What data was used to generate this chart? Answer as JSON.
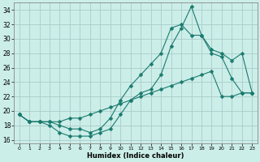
{
  "xlabel": "Humidex (Indice chaleur)",
  "bg_color": "#cceee8",
  "grid_color": "#aacccc",
  "line_color": "#1a7a6e",
  "xlim": [
    -0.5,
    23.5
  ],
  "ylim": [
    15.5,
    35.0
  ],
  "xticks": [
    0,
    1,
    2,
    3,
    4,
    5,
    6,
    7,
    8,
    9,
    10,
    11,
    12,
    13,
    14,
    15,
    16,
    17,
    18,
    19,
    20,
    21,
    22,
    23
  ],
  "yticks": [
    16,
    18,
    20,
    22,
    24,
    26,
    28,
    30,
    32,
    34
  ],
  "line1_x": [
    0,
    1,
    2,
    3,
    4,
    5,
    6,
    7,
    8,
    9,
    10,
    11,
    12,
    13,
    14,
    15,
    16,
    17,
    18,
    19,
    20,
    21,
    22,
    23
  ],
  "line1_y": [
    19.5,
    18.5,
    18.5,
    18.0,
    17.0,
    16.5,
    16.5,
    16.5,
    17.0,
    17.5,
    19.5,
    21.5,
    22.5,
    23.0,
    25.0,
    29.0,
    31.5,
    34.5,
    30.5,
    28.0,
    27.5,
    24.5,
    22.5,
    22.5
  ],
  "line2_x": [
    0,
    1,
    2,
    3,
    4,
    5,
    6,
    7,
    8,
    9,
    10,
    11,
    12,
    13,
    14,
    15,
    16,
    17,
    18,
    19,
    20,
    21,
    22,
    23
  ],
  "line2_y": [
    19.5,
    18.5,
    18.5,
    18.5,
    18.0,
    17.5,
    17.5,
    17.0,
    17.5,
    19.0,
    21.5,
    23.5,
    25.0,
    26.5,
    28.0,
    31.5,
    32.0,
    30.5,
    30.5,
    28.5,
    28.0,
    27.0,
    28.0,
    22.5
  ],
  "line3_x": [
    0,
    1,
    2,
    3,
    4,
    5,
    6,
    7,
    8,
    9,
    10,
    11,
    12,
    13,
    14,
    15,
    16,
    17,
    18,
    19,
    20,
    21,
    22,
    23
  ],
  "line3_y": [
    19.5,
    18.5,
    18.5,
    18.5,
    18.5,
    19.0,
    19.0,
    19.5,
    20.0,
    20.5,
    21.0,
    21.5,
    22.0,
    22.5,
    23.0,
    23.5,
    24.0,
    24.5,
    25.0,
    25.5,
    22.0,
    22.0,
    22.5,
    22.5
  ]
}
